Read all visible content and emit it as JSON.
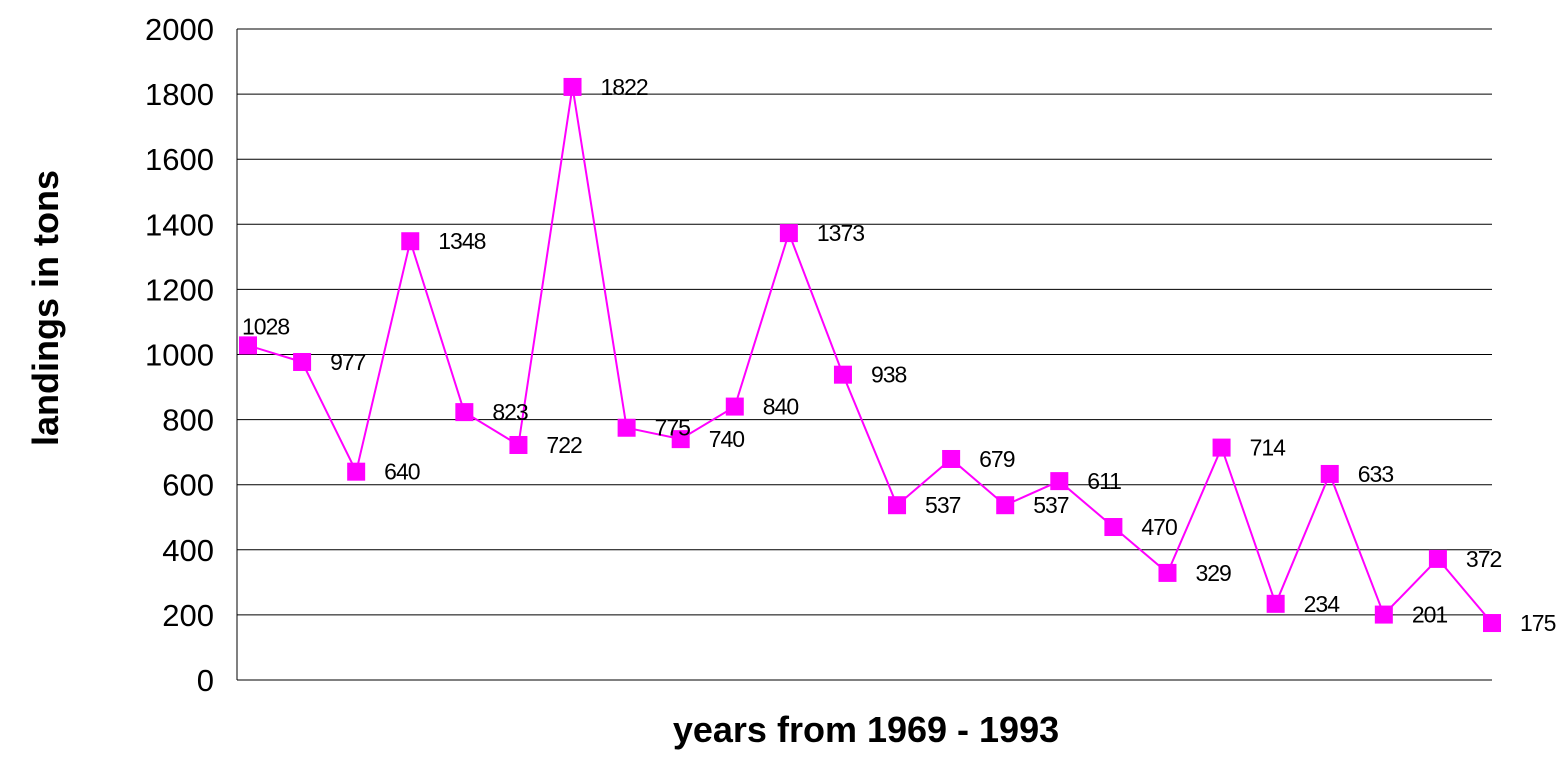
{
  "chart_data": {
    "type": "line",
    "title": "",
    "xlabel": "years from 1969 - 1993",
    "ylabel": "landings in tons",
    "ylim": [
      0,
      2000
    ],
    "yticks": [
      "0",
      "200",
      "400",
      "600",
      "800",
      "1000",
      "1200",
      "1400",
      "1600",
      "1800",
      "2000"
    ],
    "grid": true,
    "legend": "none",
    "series": [
      {
        "color": "#ff00ff",
        "values": [
          1028,
          977,
          640,
          1348,
          823,
          722,
          1822,
          775,
          740,
          840,
          1373,
          938,
          537,
          679,
          537,
          611,
          470,
          329,
          714,
          234,
          633,
          201,
          372,
          175
        ],
        "labels": [
          "1028",
          "977",
          "640",
          "1348",
          "823",
          "722",
          "1822",
          "775",
          "740",
          "840",
          "1373",
          "938",
          "537",
          "679",
          "537",
          "611",
          "470",
          "329",
          "714",
          "234",
          "633",
          "201",
          "372",
          "175"
        ]
      }
    ]
  }
}
